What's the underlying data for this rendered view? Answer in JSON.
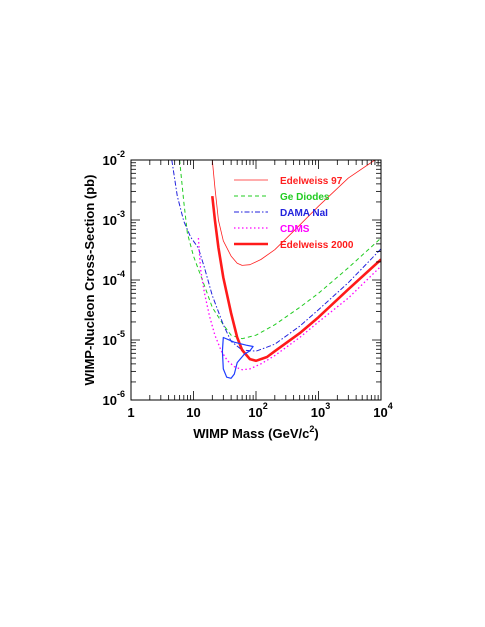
{
  "chart_data": {
    "type": "line",
    "title": "",
    "xlabel": "WIMP Mass (GeV/c",
    "xlabel_sup": "2",
    "xlabel_end": ")",
    "ylabel": "WIMP-Nucleon Cross-Section (pb)",
    "x_scale": "log",
    "y_scale": "log",
    "xlim": [
      1,
      10000
    ],
    "ylim": [
      1e-06,
      0.01
    ],
    "grid": false,
    "legend_position": "top-right",
    "x_ticks": [
      {
        "value": 1,
        "base": "1",
        "exp": ""
      },
      {
        "value": 10,
        "base": "10",
        "exp": ""
      },
      {
        "value": 100,
        "base": "10",
        "exp": "2"
      },
      {
        "value": 1000,
        "base": "10",
        "exp": "3"
      },
      {
        "value": 10000,
        "base": "10",
        "exp": "4"
      }
    ],
    "y_ticks": [
      {
        "value": 1e-06,
        "base": "10",
        "exp": "-6"
      },
      {
        "value": 1e-05,
        "base": "10",
        "exp": "-5"
      },
      {
        "value": 0.0001,
        "base": "10",
        "exp": "-4"
      },
      {
        "value": 0.001,
        "base": "10",
        "exp": "-3"
      },
      {
        "value": 0.01,
        "base": "10",
        "exp": "-2"
      }
    ],
    "series": [
      {
        "name": "Edelweiss 97",
        "color": "#ff2020",
        "style": "solid",
        "width": 0.8,
        "points": [
          [
            20,
            0.01
          ],
          [
            22,
            0.0035
          ],
          [
            25,
            0.001
          ],
          [
            30,
            0.00045
          ],
          [
            40,
            0.00025
          ],
          [
            50,
            0.00019
          ],
          [
            60,
            0.000175
          ],
          [
            80,
            0.00018
          ],
          [
            120,
            0.00022
          ],
          [
            200,
            0.00032
          ],
          [
            400,
            0.00065
          ],
          [
            1000,
            0.0017
          ],
          [
            3000,
            0.005
          ],
          [
            8000,
            0.01
          ]
        ]
      },
      {
        "name": "Ge Diodes",
        "color": "#22cc22",
        "style": "dashed",
        "width": 1.0,
        "points": [
          [
            6,
            0.01
          ],
          [
            7,
            0.002
          ],
          [
            8,
            0.0006
          ],
          [
            10,
            0.00025
          ],
          [
            15,
            8e-05
          ],
          [
            20,
            3.5e-05
          ],
          [
            30,
            1.8e-05
          ],
          [
            40,
            1.2e-05
          ],
          [
            60,
            1.05e-05
          ],
          [
            100,
            1.2e-05
          ],
          [
            200,
            1.8e-05
          ],
          [
            500,
            3.5e-05
          ],
          [
            1000,
            6e-05
          ],
          [
            3000,
            0.00016
          ],
          [
            10000,
            0.0005
          ]
        ]
      },
      {
        "name": "DAMA NaI",
        "color": "#2222dd",
        "style": "dashdot",
        "width": 1.0,
        "points": [
          [
            4.5,
            0.01
          ],
          [
            5.5,
            0.0025
          ],
          [
            7,
            0.00095
          ],
          [
            9,
            0.00052
          ],
          [
            12,
            0.00034
          ],
          [
            15,
            0.00016
          ],
          [
            20,
            5.5e-05
          ],
          [
            30,
            1.8e-05
          ],
          [
            40,
            9.5e-06
          ],
          [
            60,
            6.8e-06
          ],
          [
            100,
            6.5e-06
          ],
          [
            200,
            8.5e-06
          ],
          [
            500,
            1.7e-05
          ],
          [
            1000,
            3.2e-05
          ],
          [
            3000,
            9e-05
          ],
          [
            10000,
            0.00033
          ]
        ]
      },
      {
        "name": "CDMS",
        "color": "#ff00ff",
        "style": "dotted",
        "width": 1.3,
        "points": [
          [
            12,
            0.0005
          ],
          [
            13,
            0.00015
          ],
          [
            15,
            6e-05
          ],
          [
            18,
            2.5e-05
          ],
          [
            22,
            1.2e-05
          ],
          [
            28,
            6.5e-06
          ],
          [
            35,
            4.5e-06
          ],
          [
            45,
            3.6e-06
          ],
          [
            60,
            3.2e-06
          ],
          [
            80,
            3.3e-06
          ],
          [
            120,
            4e-06
          ],
          [
            200,
            5.5e-06
          ],
          [
            500,
            1.1e-05
          ],
          [
            1000,
            2e-05
          ],
          [
            3000,
            5e-05
          ],
          [
            10000,
            0.00017
          ]
        ]
      },
      {
        "name": "Edelweiss 2000",
        "color": "#ff1a1a",
        "style": "solid",
        "width": 2.6,
        "points": [
          [
            20,
            0.0025
          ],
          [
            22,
            0.001
          ],
          [
            25,
            0.00035
          ],
          [
            30,
            0.00011
          ],
          [
            40,
            2.8e-05
          ],
          [
            50,
            1.1e-05
          ],
          [
            60,
            6.8e-06
          ],
          [
            80,
            4.8e-06
          ],
          [
            100,
            4.5e-06
          ],
          [
            150,
            5.2e-06
          ],
          [
            200,
            6.5e-06
          ],
          [
            500,
            1.3e-05
          ],
          [
            1000,
            2.4e-05
          ],
          [
            3000,
            7e-05
          ],
          [
            10000,
            0.00022
          ]
        ]
      },
      {
        "name": "",
        "color": "#1e3cff",
        "style": "solid",
        "width": 1.2,
        "closed": true,
        "points": [
          [
            30,
            1.1e-05
          ],
          [
            45,
            9.2e-06
          ],
          [
            70,
            8.2e-06
          ],
          [
            90,
            7.8e-06
          ],
          [
            80,
            6.6e-06
          ],
          [
            65,
            5.8e-06
          ],
          [
            50,
            4.2e-06
          ],
          [
            45,
            2.7e-06
          ],
          [
            40,
            2.3e-06
          ],
          [
            34,
            2.4e-06
          ],
          [
            30,
            3.3e-06
          ],
          [
            29,
            6.5e-06
          ],
          [
            30,
            1.1e-05
          ]
        ]
      }
    ]
  }
}
